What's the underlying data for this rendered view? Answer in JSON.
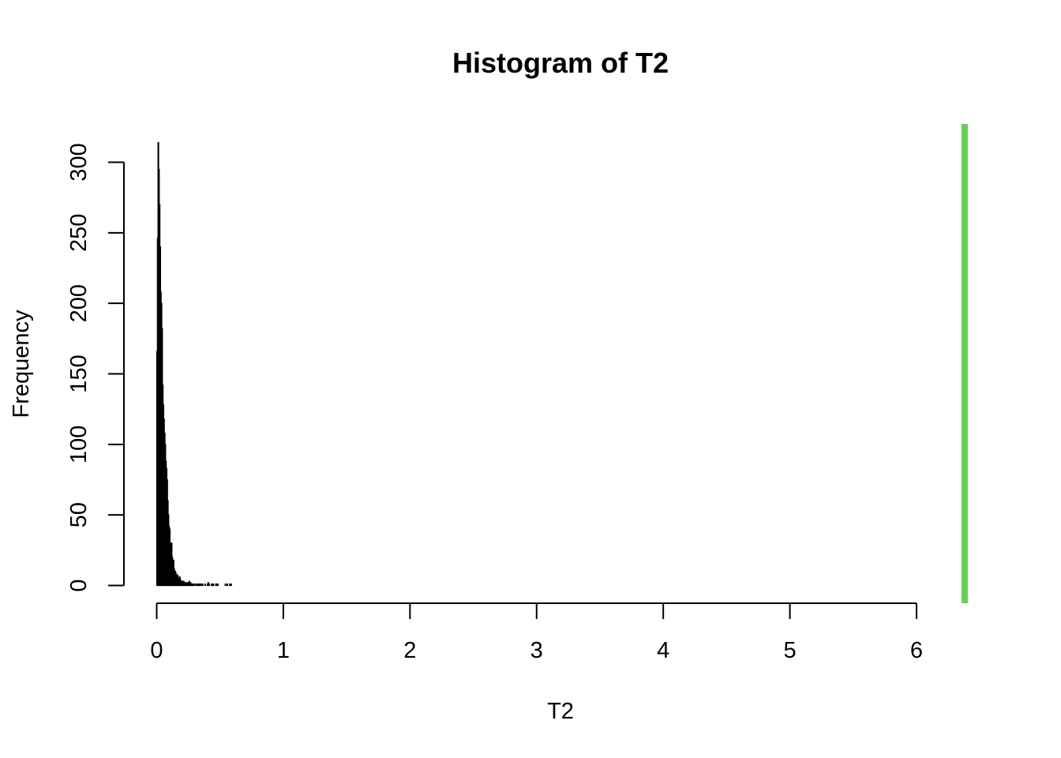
{
  "chart_data": {
    "type": "bar",
    "title": "Histogram of T2",
    "xlabel": "T2",
    "ylabel": "Frequency",
    "xlim": [
      0,
      6
    ],
    "ylim": [
      0,
      315
    ],
    "x_ticks": [
      0,
      1,
      2,
      3,
      4,
      5,
      6
    ],
    "y_ticks": [
      0,
      50,
      100,
      150,
      200,
      250,
      300
    ],
    "bin_width": 0.005,
    "bin_start": 0,
    "bar_fill": "#000000",
    "values": [
      166,
      246,
      314,
      295,
      270,
      240,
      208,
      200,
      182,
      142,
      128,
      118,
      108,
      100,
      88,
      83,
      75,
      60,
      50,
      42,
      40,
      30,
      26,
      30,
      20,
      15,
      18,
      12,
      10,
      10,
      8,
      8,
      6,
      7,
      5,
      5,
      6,
      4,
      3,
      3,
      3,
      2,
      3,
      2,
      2,
      2,
      1,
      2,
      1,
      2,
      2,
      3,
      1,
      2,
      1,
      1,
      1,
      1,
      1,
      1,
      0,
      0,
      1,
      1,
      1,
      0,
      1,
      1,
      1,
      0,
      1,
      0,
      1,
      0,
      0,
      0,
      1,
      0,
      0,
      0,
      1,
      2,
      1,
      0,
      0,
      0,
      1,
      0,
      1,
      1,
      0,
      0,
      0,
      1,
      1,
      0,
      1,
      0,
      0,
      0,
      0,
      0,
      0,
      0,
      0,
      0,
      0,
      0,
      1,
      0,
      0,
      1,
      0,
      0,
      0,
      1,
      0,
      1
    ],
    "reference_line": {
      "orientation": "vertical",
      "x": 6.38,
      "color": "#66d155"
    },
    "grid": false,
    "legend": "none"
  }
}
